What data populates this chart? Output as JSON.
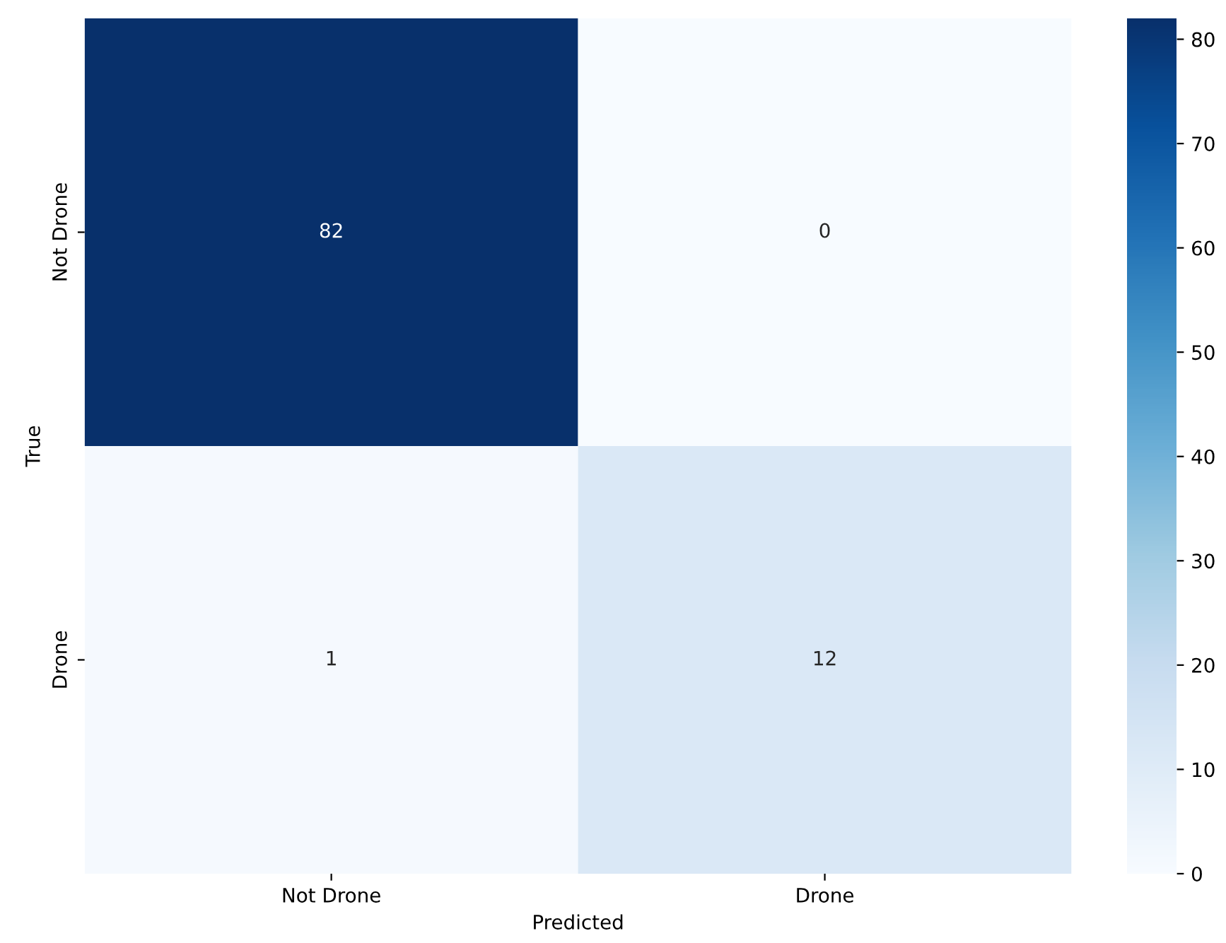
{
  "chart_data": {
    "type": "heatmap",
    "xlabel": "Predicted",
    "ylabel": "True",
    "categories": [
      "Not Drone",
      "Drone"
    ],
    "y_categories": [
      "Not Drone",
      "Drone"
    ],
    "cells": [
      [
        82,
        0
      ],
      [
        1,
        12
      ]
    ],
    "clim": [
      0,
      82
    ],
    "cticks": [
      0,
      10,
      20,
      30,
      40,
      50,
      60,
      70,
      80
    ],
    "data_labels": true
  }
}
